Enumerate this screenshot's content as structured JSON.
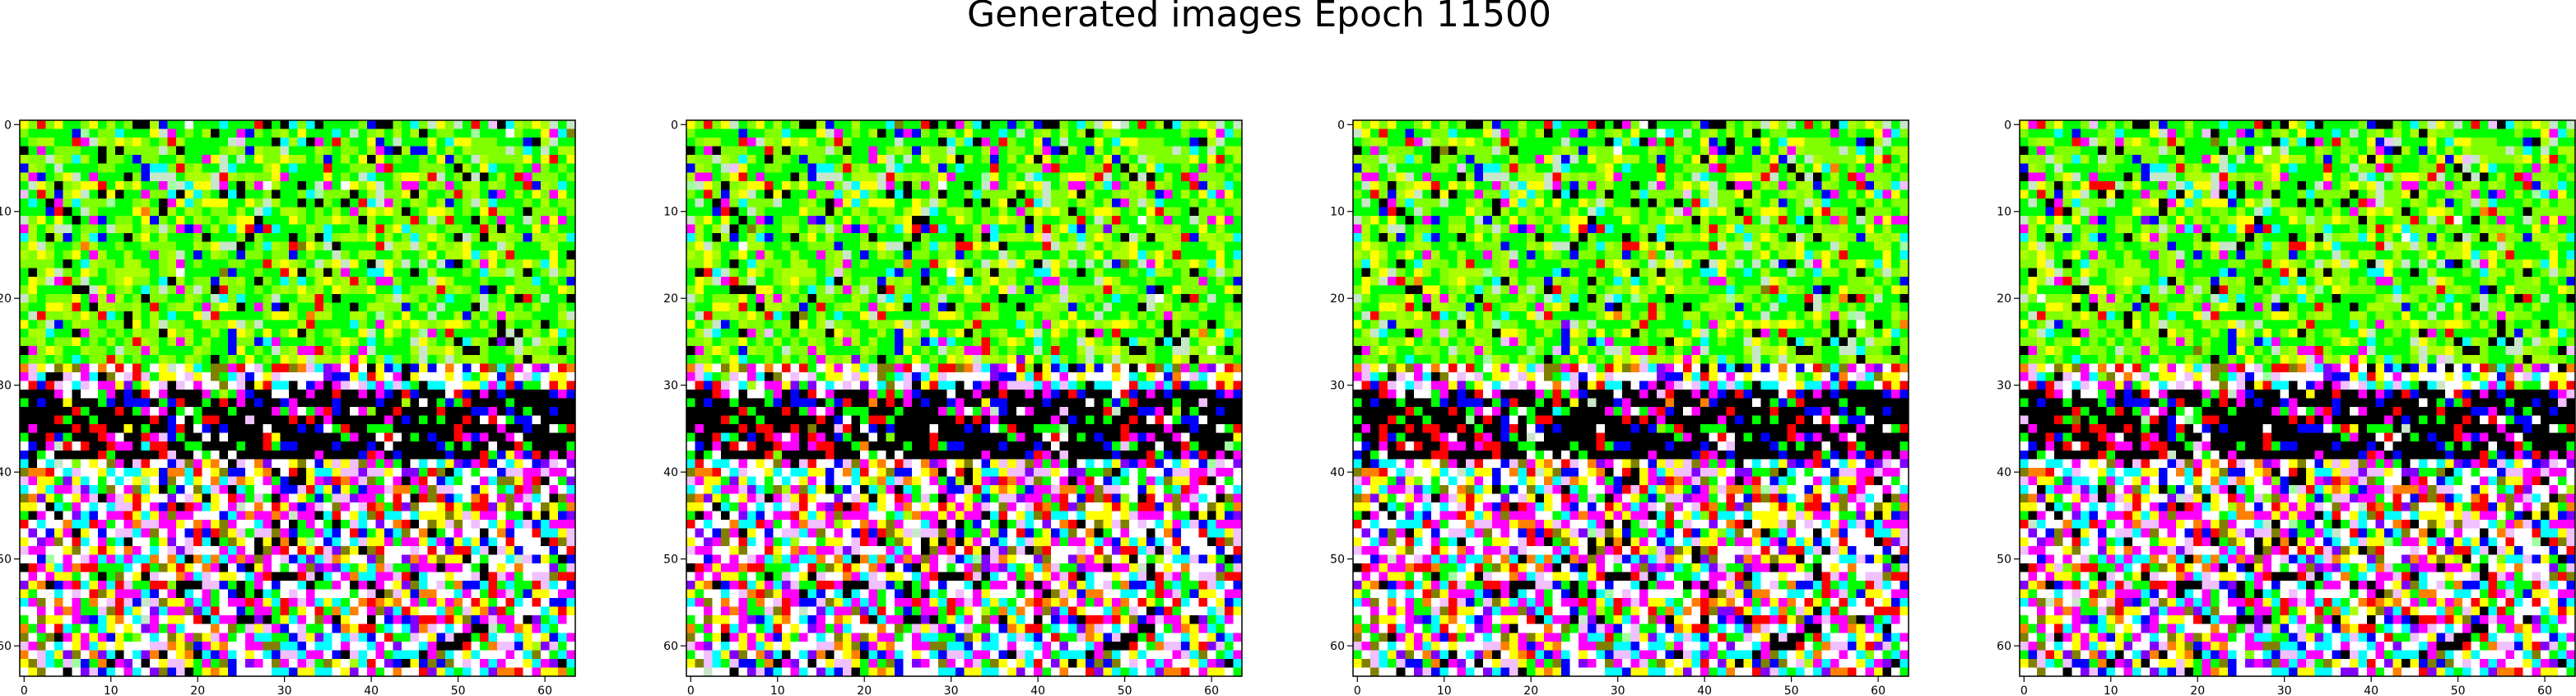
{
  "figure": {
    "title": "Generated images Epoch 11500"
  },
  "chart_data": {
    "type": "heatmap",
    "panel_count": 4,
    "image_resolution": [
      64,
      64
    ],
    "x_ticks": [
      0,
      10,
      20,
      30,
      40,
      50,
      60
    ],
    "y_ticks": [
      0,
      10,
      20,
      30,
      40,
      50,
      60
    ],
    "xlim": [
      -0.5,
      63.5
    ],
    "ylim": [
      63.5,
      -0.5
    ],
    "grid": false,
    "palette": [
      "#000000",
      "#ffffff",
      "#00ff00",
      "#7fff00",
      "#aaff00",
      "#ffff00",
      "#ff00ff",
      "#ff0000",
      "#0000ff",
      "#00ffff",
      "#c8e6c8",
      "#f0c0ff",
      "#808000",
      "#ff8000",
      "#8000ff",
      "#a0ffa0"
    ]
  }
}
